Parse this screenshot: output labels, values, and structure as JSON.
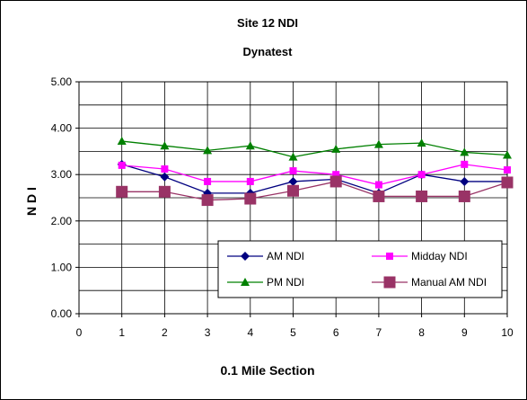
{
  "chart_data": {
    "type": "line",
    "title": "Site 12 NDI",
    "subtitle": "Dynatest",
    "xlabel": "0.1 Mile Section",
    "ylabel": "N D I",
    "xlim": [
      0,
      10
    ],
    "ylim": [
      0,
      5
    ],
    "x_ticks": [
      "0",
      "1",
      "2",
      "3",
      "4",
      "5",
      "6",
      "7",
      "8",
      "9",
      "10"
    ],
    "y_ticks": [
      "0.00",
      "1.00",
      "2.00",
      "3.00",
      "4.00",
      "5.00"
    ],
    "grid": true,
    "legend_position": "bottom-right",
    "x": [
      1,
      2,
      3,
      4,
      5,
      6,
      7,
      8,
      9,
      10
    ],
    "series": [
      {
        "name": "AM NDI",
        "color": "#000080",
        "marker": "diamond",
        "values": [
          3.22,
          2.95,
          2.6,
          2.6,
          2.85,
          2.9,
          2.6,
          3.0,
          2.85,
          2.85
        ]
      },
      {
        "name": "Midday NDI",
        "color": "#FF00FF",
        "marker": "square",
        "values": [
          3.2,
          3.12,
          2.85,
          2.85,
          3.08,
          3.0,
          2.78,
          3.0,
          3.22,
          3.1
        ]
      },
      {
        "name": "PM NDI",
        "color": "#008000",
        "marker": "triangle",
        "values": [
          3.72,
          3.62,
          3.52,
          3.62,
          3.38,
          3.55,
          3.65,
          3.68,
          3.48,
          3.42
        ]
      },
      {
        "name": "Manual AM NDI",
        "color": "#993366",
        "marker": "square-large",
        "values": [
          2.63,
          2.63,
          2.45,
          2.48,
          2.65,
          2.85,
          2.53,
          2.53,
          2.53,
          2.83
        ]
      }
    ]
  }
}
